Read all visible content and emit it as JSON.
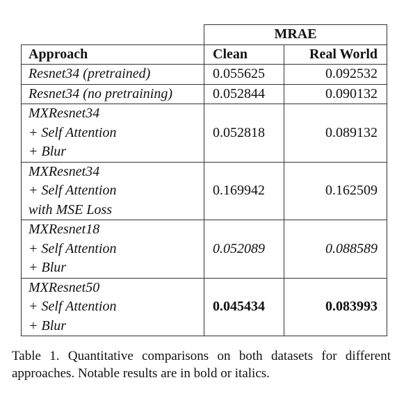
{
  "table": {
    "group_header": "MRAE",
    "columns": [
      "Approach",
      "Clean",
      "Real World"
    ],
    "rows": [
      {
        "approach": [
          "Resnet34 (pretrained)"
        ],
        "clean": "0.055625",
        "real_world": "0.092532"
      },
      {
        "approach": [
          "Resnet34 (no pretraining)"
        ],
        "clean": "0.052844",
        "real_world": "0.090132"
      },
      {
        "approach": [
          "MXResnet34",
          "+ Self Attention",
          "+ Blur"
        ],
        "clean": "0.052818",
        "real_world": "0.089132"
      },
      {
        "approach": [
          "MXResnet34",
          "+ Self Attention",
          "with MSE Loss"
        ],
        "clean": "0.169942",
        "real_world": "0.162509"
      },
      {
        "approach": [
          "MXResnet18",
          "+ Self Attention",
          "+ Blur"
        ],
        "clean": "0.052089",
        "real_world": "0.088589"
      },
      {
        "approach": [
          "MXResnet50",
          "+ Self Attention",
          "+ Blur"
        ],
        "clean": "0.045434",
        "real_world": "0.083993"
      }
    ]
  },
  "caption": "Table 1. Quantitative comparisons on both datasets for different approaches. Notable results are in bold or italics."
}
